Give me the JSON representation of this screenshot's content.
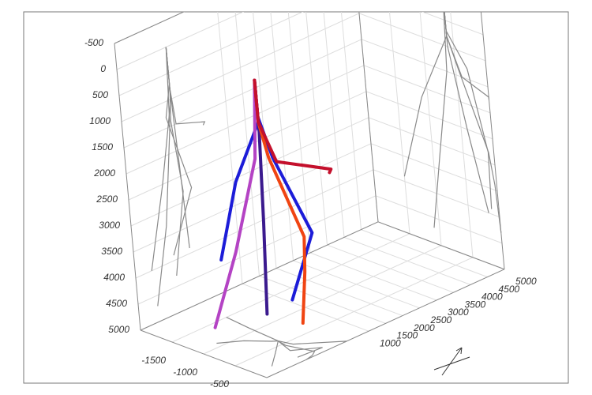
{
  "chart_data": {
    "type": "line3d",
    "xlim": [
      -2000,
      0
    ],
    "ylim": [
      -2000,
      5000
    ],
    "zlim": [
      -500,
      5000
    ],
    "xticks": [
      -1500,
      -1000,
      -500
    ],
    "yticks": [
      1000,
      1500,
      2000,
      2500,
      3000,
      3500,
      4000,
      4500,
      5000
    ],
    "zticks": [
      -500,
      0,
      500,
      1000,
      1500,
      2000,
      2500,
      3000,
      3500,
      4000,
      4500,
      5000
    ],
    "grid": true,
    "projections": true,
    "projection_color": "#8a8a8a",
    "series": [
      {
        "color": "#1c1cd8",
        "x": [
          -600,
          -600,
          -1100,
          -1500
        ],
        "y": [
          -550,
          -550,
          -480,
          -400
        ],
        "z": [
          0,
          800,
          2200,
          3900
        ]
      },
      {
        "color": "#3b1a8e",
        "x": [
          -600,
          -600,
          -400,
          -173
        ],
        "y": [
          -550,
          -550,
          -1000,
          -1530
        ],
        "z": [
          0,
          1000,
          2500,
          4000
        ]
      },
      {
        "color": "#b443c4",
        "x": [
          -600,
          -650,
          -900,
          -1090
        ],
        "y": [
          -550,
          -650,
          -1000,
          -1450
        ],
        "z": [
          0,
          1500,
          3300,
          4700
        ]
      },
      {
        "color": "#1c1cd8",
        "x": [
          -600,
          -600,
          -312,
          -91,
          -121
        ],
        "y": [
          -550,
          -550,
          -730,
          -190,
          -868
        ],
        "z": [
          0,
          700,
          1300,
          2800,
          3900
        ]
      },
      {
        "color": "#f04412",
        "x": [
          -600,
          -600,
          -450,
          -85,
          -30,
          0
        ],
        "y": [
          -550,
          -550,
          -606,
          -435,
          -600,
          -837
        ],
        "z": [
          0,
          800,
          1400,
          2800,
          3400,
          4300
        ]
      },
      {
        "color": "#c4102c",
        "x": [
          -600,
          -600,
          -410,
          0,
          0
        ],
        "y": [
          -550,
          -550,
          -463,
          350,
          300
        ],
        "z": [
          0,
          800,
          1500,
          1700,
          1750
        ]
      }
    ]
  }
}
